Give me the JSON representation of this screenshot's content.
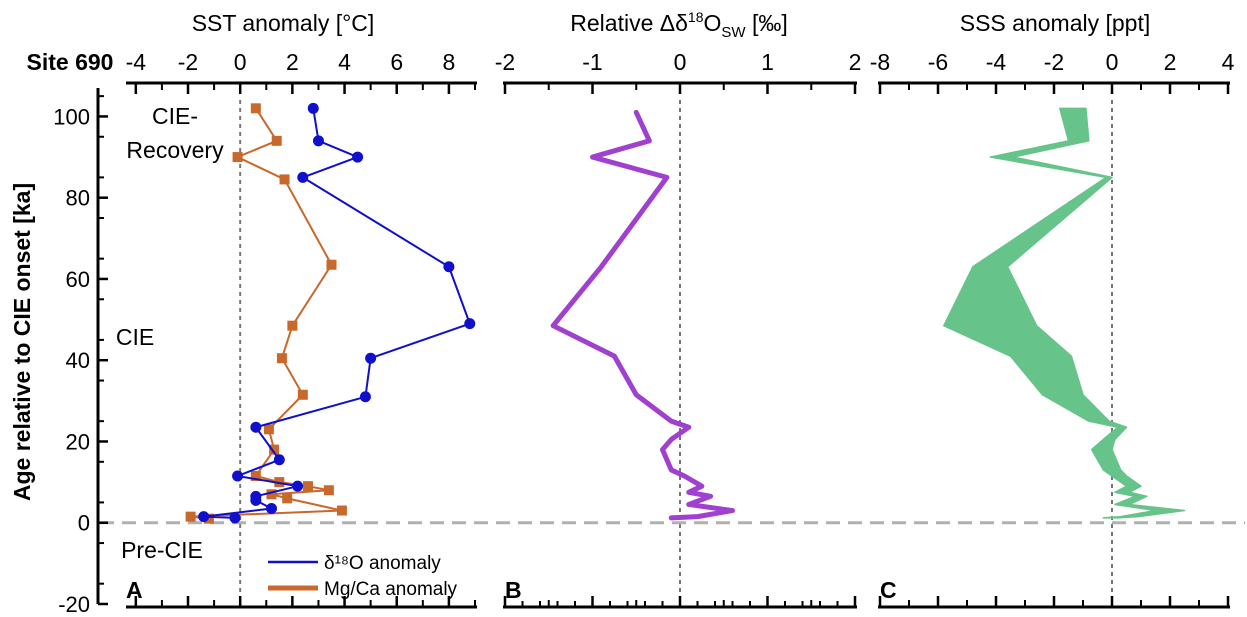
{
  "site_label": "Site 690",
  "y_axis": {
    "label": "Age relative to CIE onset [ka]",
    "ticks": [
      -20,
      0,
      20,
      40,
      60,
      80,
      100
    ],
    "range": [
      -20,
      107
    ]
  },
  "phase_labels": {
    "recovery_line1": "CIE-",
    "recovery_line2": "Recovery",
    "cie": "CIE",
    "pre_cie": "Pre-CIE"
  },
  "panel_letters": [
    "A",
    "B",
    "C"
  ],
  "legend": {
    "d18o": "δ¹⁸O anomaly",
    "mgca": "Mg/Ca anomaly"
  },
  "colors": {
    "d18o": "#1010cc",
    "mgca": "#c8682a",
    "dsw": "#a040d0",
    "sss": "#66c48a",
    "reference": "#777777",
    "onset": "#b0b0b0"
  },
  "chart_data": [
    {
      "type": "line",
      "panel": "A",
      "title": "SST anomaly [°C]",
      "xlabel": "SST anomaly [°C]",
      "ylabel": "Age relative to CIE onset [ka]",
      "xlim": [
        -4.3,
        9
      ],
      "x_ticks": [
        -4,
        -2,
        0,
        2,
        4,
        6,
        8
      ],
      "ylim": [
        -20,
        107
      ],
      "series": [
        {
          "name": "δ¹⁸O anomaly",
          "points": [
            [
              2.8,
              102
            ],
            [
              3.0,
              94
            ],
            [
              4.5,
              90
            ],
            [
              2.4,
              85
            ],
            [
              8.0,
              63
            ],
            [
              8.8,
              49
            ],
            [
              5.0,
              40.5
            ],
            [
              4.8,
              31
            ],
            [
              0.6,
              23.5
            ],
            [
              1.5,
              15.5
            ],
            [
              -0.1,
              11.5
            ],
            [
              2.2,
              9
            ],
            [
              0.6,
              6.5
            ],
            [
              0.6,
              5.5
            ],
            [
              1.2,
              3.5
            ],
            [
              -1.4,
              1.5
            ],
            [
              -0.2,
              1.2
            ]
          ]
        },
        {
          "name": "Mg/Ca anomaly",
          "points": [
            [
              0.6,
              102
            ],
            [
              1.4,
              94
            ],
            [
              -0.1,
              90
            ],
            [
              1.7,
              84.5
            ],
            [
              3.5,
              63.5
            ],
            [
              2.0,
              48.5
            ],
            [
              1.6,
              40.5
            ],
            [
              2.4,
              31.5
            ],
            [
              1.1,
              23
            ],
            [
              1.3,
              18
            ],
            [
              0.6,
              11.5
            ],
            [
              1.5,
              10
            ],
            [
              2.6,
              9
            ],
            [
              3.4,
              8
            ],
            [
              1.2,
              7
            ],
            [
              1.8,
              6
            ],
            [
              3.9,
              3
            ],
            [
              -1.9,
              1.5
            ],
            [
              -1.2,
              1
            ]
          ]
        }
      ]
    },
    {
      "type": "line",
      "panel": "B",
      "title": "Relative Δδ18Osw [‰]",
      "xlabel": "Relative Δδ18Osw [‰]",
      "xlim": [
        -2,
        2
      ],
      "x_ticks": [
        -2,
        -1,
        0,
        1,
        2
      ],
      "ylim": [
        -20,
        107
      ],
      "series": [
        {
          "values_xy": [
            [
              -0.5,
              101
            ],
            [
              -0.35,
              94
            ],
            [
              -1.0,
              90
            ],
            [
              -0.15,
              85
            ],
            [
              -0.9,
              63
            ],
            [
              -1.45,
              48.5
            ],
            [
              -0.75,
              41
            ],
            [
              -0.5,
              31.5
            ],
            [
              -0.1,
              25
            ],
            [
              0.1,
              23.5
            ],
            [
              -0.1,
              20.5
            ],
            [
              -0.2,
              18
            ],
            [
              -0.1,
              13
            ],
            [
              0.05,
              11.5
            ],
            [
              0.25,
              9
            ],
            [
              0.1,
              7.5
            ],
            [
              0.35,
              6.5
            ],
            [
              0.1,
              4.5
            ],
            [
              0.6,
              3
            ],
            [
              0.2,
              1.5
            ],
            [
              -0.1,
              1.2
            ]
          ]
        }
      ]
    },
    {
      "type": "area",
      "panel": "C",
      "title": "SSS anomaly [ppt]",
      "xlabel": "SSS anomaly [ppt]",
      "xlim": [
        -8,
        4
      ],
      "x_ticks": [
        -8,
        -6,
        -4,
        -2,
        0,
        2,
        4
      ],
      "ylim": [
        -20,
        107
      ],
      "band": {
        "y": [
          102,
          94,
          90,
          85,
          63,
          48.5,
          41,
          31.5,
          25,
          23.5,
          20.5,
          18,
          13,
          11.5,
          9,
          7.5,
          6.5,
          4.5,
          3,
          1.5,
          1.2
        ],
        "lower": [
          -1.8,
          -1.5,
          -4.2,
          -0.2,
          -4.8,
          -5.8,
          -3.5,
          -2.4,
          -0.8,
          0.2,
          -0.3,
          -0.7,
          -0.3,
          0.0,
          0.5,
          0.1,
          0.8,
          0.1,
          1.5,
          0.3,
          -0.3
        ],
        "upper": [
          -0.9,
          -0.8,
          -3.4,
          0.0,
          -3.6,
          -2.6,
          -1.4,
          -1.0,
          -0.1,
          0.5,
          0.1,
          0.0,
          0.3,
          0.5,
          1.0,
          0.6,
          1.2,
          0.6,
          2.5,
          0.9,
          0.2
        ]
      }
    }
  ]
}
